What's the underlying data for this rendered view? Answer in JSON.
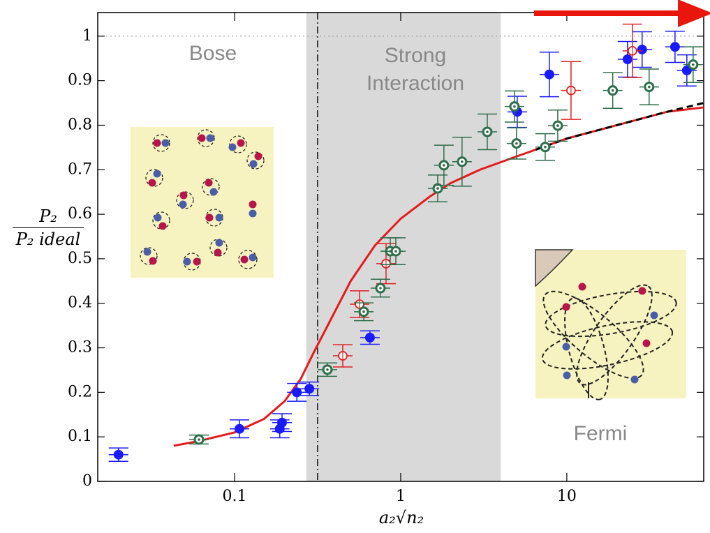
{
  "chart_data": {
    "type": "scatter",
    "xlabel": "a₂√n₂",
    "ylabel": {
      "numerator": "P₂",
      "denominator": "P₂ ideal"
    },
    "annotations": [
      "Bose",
      "Strong Interaction",
      "Fermi"
    ],
    "xscale": "log",
    "xlim": [
      0.015,
      66.7
    ],
    "xticks": [
      0.1,
      1,
      10
    ],
    "ylim": [
      0,
      1.053
    ],
    "yticks": [
      0,
      0.1,
      0.2,
      0.3,
      0.4,
      0.5,
      0.6,
      0.7,
      0.8,
      0.9,
      1
    ],
    "shaded_xrange": [
      0.27,
      4
    ],
    "shade_color": "#d9d9d9",
    "vline_x": 0.316,
    "hline_y": 1,
    "curves": [
      {
        "color": "#e41a1c",
        "style": "solid",
        "x": [
          0.043,
          0.06,
          0.1,
          0.15,
          0.2,
          0.25,
          0.3,
          0.4,
          0.5,
          0.7,
          1,
          1.5,
          2,
          3,
          5,
          10,
          20,
          40,
          66.7
        ],
        "values": [
          0.08,
          0.09,
          0.11,
          0.14,
          0.18,
          0.23,
          0.29,
          0.38,
          0.45,
          0.53,
          0.59,
          0.64,
          0.67,
          0.7,
          0.73,
          0.77,
          0.8,
          0.83,
          0.84
        ]
      },
      {
        "color": "#000000",
        "style": "dashed",
        "x": [
          6.5,
          10,
          20,
          40,
          66.7
        ],
        "values": [
          0.745,
          0.77,
          0.8,
          0.83,
          0.85
        ]
      }
    ],
    "series": [
      {
        "color": "#1a1aff",
        "marker": "filled",
        "x": [
          0.02,
          0.107,
          0.187,
          0.193,
          0.237,
          0.282,
          0.653,
          5.03,
          7.85,
          23.2,
          28.4,
          44.8,
          52.8
        ],
        "values": [
          0.06,
          0.118,
          0.118,
          0.132,
          0.2,
          0.208,
          0.323,
          0.83,
          0.914,
          0.948,
          0.97,
          0.976,
          0.923
        ],
        "yerr": [
          0.015,
          0.02,
          0.02,
          0.02,
          0.02,
          0.015,
          0.015,
          0.035,
          0.05,
          0.04,
          0.04,
          0.035,
          0.035
        ]
      },
      {
        "color": "#e02020",
        "marker": "open-cross",
        "x": [
          0.448,
          0.565,
          0.816,
          10.6,
          24.8
        ],
        "values": [
          0.282,
          0.398,
          0.489,
          0.878,
          0.967
        ],
        "yerr": [
          0.025,
          0.03,
          0.045,
          0.065,
          0.06
        ]
      },
      {
        "color": "#2e6e4a",
        "marker": "open-dot",
        "x": [
          0.061,
          0.362,
          0.599,
          0.755,
          0.865,
          0.935,
          1.67,
          1.82,
          2.34,
          3.32,
          4.84,
          4.98,
          7.41,
          8.82,
          18.9,
          31.3,
          57.6
        ],
        "values": [
          0.094,
          0.251,
          0.381,
          0.434,
          0.517,
          0.517,
          0.658,
          0.71,
          0.718,
          0.785,
          0.842,
          0.759,
          0.751,
          0.799,
          0.878,
          0.886,
          0.936
        ],
        "yerr": [
          0.01,
          0.015,
          0.02,
          0.02,
          0.03,
          0.03,
          0.03,
          0.045,
          0.055,
          0.04,
          0.035,
          0.035,
          0.03,
          0.035,
          0.04,
          0.04,
          0.04
        ]
      }
    ]
  }
}
